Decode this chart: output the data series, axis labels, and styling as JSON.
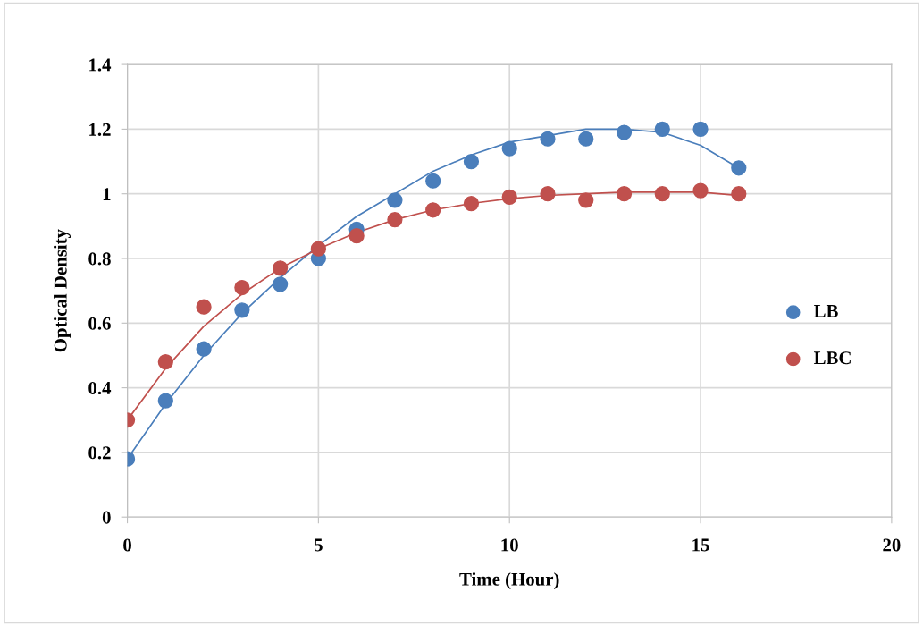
{
  "chart_data": {
    "type": "scatter",
    "xlabel": "Time (Hour)",
    "ylabel": "Optical Density",
    "xlim": [
      0,
      20
    ],
    "xticks": [
      0,
      5,
      10,
      15,
      20
    ],
    "ylim": [
      0,
      1.4
    ],
    "yticks": [
      {
        "value": 0,
        "label": "0"
      },
      0.2,
      0.4,
      0.6,
      0.8,
      {
        "value": 1,
        "label": "1"
      },
      1.2,
      1.4
    ],
    "grid": true,
    "legend": "right",
    "marker": "circle",
    "series": [
      {
        "name": "LB",
        "color": "#4a7ebb",
        "x": [
          0,
          1,
          2,
          3,
          4,
          5,
          6,
          7,
          8,
          9,
          10,
          11,
          12,
          13,
          14,
          15,
          16
        ],
        "values": [
          0.18,
          0.36,
          0.52,
          0.64,
          0.72,
          0.8,
          0.89,
          0.98,
          1.04,
          1.1,
          1.14,
          1.17,
          1.17,
          1.19,
          1.2,
          1.2,
          1.08
        ]
      },
      {
        "name": "LBC",
        "color": "#c0504d",
        "x": [
          0,
          1,
          2,
          3,
          4,
          5,
          6,
          7,
          8,
          9,
          10,
          11,
          12,
          13,
          14,
          15,
          16
        ],
        "values": [
          0.3,
          0.48,
          0.65,
          0.71,
          0.77,
          0.83,
          0.87,
          0.92,
          0.95,
          0.97,
          0.99,
          1.0,
          0.98,
          1.0,
          1.0,
          1.01,
          1.0
        ]
      },
      {
        "type": "line",
        "color": "#4a7ebb",
        "marker": "none",
        "x": [
          0,
          1,
          2,
          3,
          4,
          5,
          6,
          7,
          8,
          9,
          10,
          11,
          12,
          13,
          14,
          15,
          16
        ],
        "values": [
          0.18,
          0.35,
          0.5,
          0.63,
          0.74,
          0.84,
          0.93,
          1.0,
          1.07,
          1.12,
          1.16,
          1.18,
          1.2,
          1.2,
          1.19,
          1.15,
          1.08
        ]
      },
      {
        "type": "line",
        "color": "#c0504d",
        "marker": "none",
        "x": [
          0,
          1,
          2,
          3,
          4,
          5,
          6,
          7,
          8,
          9,
          10,
          11,
          12,
          13,
          14,
          15,
          16
        ],
        "values": [
          0.3,
          0.46,
          0.59,
          0.69,
          0.77,
          0.83,
          0.88,
          0.92,
          0.95,
          0.97,
          0.985,
          0.995,
          1.0,
          1.005,
          1.005,
          1.005,
          0.995
        ]
      }
    ]
  }
}
